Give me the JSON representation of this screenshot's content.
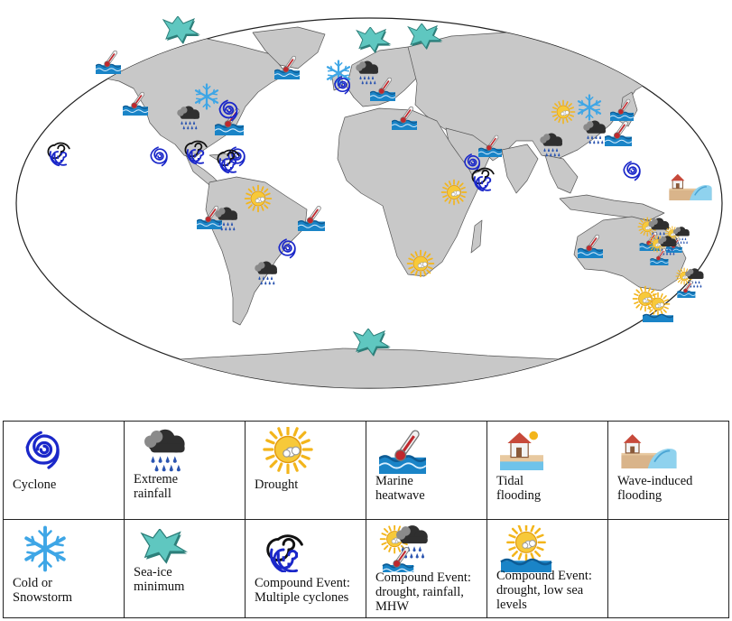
{
  "colors": {
    "land": "#c8c8c8",
    "land_stroke": "#555555",
    "ocean": "#ffffff",
    "cyclone": "#1a27c9",
    "snow": "#3ea6e6",
    "sea_ice": "#5fc7c0",
    "sun": "#f3b51b",
    "cloud": "#2f2f2f",
    "rain": "#2a54b0",
    "wave": "#1a84c7",
    "thermo": "#c0282d"
  },
  "legend": {
    "items": [
      {
        "key": "cyclone",
        "label": "Cyclone",
        "icon": "cyclone-icon"
      },
      {
        "key": "rainfall",
        "label": "Extreme rainfall",
        "icon": "rain-cloud-icon"
      },
      {
        "key": "drought",
        "label": "Drought",
        "icon": "sun-icon"
      },
      {
        "key": "mhw",
        "label": "Marine heatwave",
        "icon": "thermometer-wave-icon"
      },
      {
        "key": "tidal",
        "label": "Tidal flooding",
        "icon": "tidal-house-icon"
      },
      {
        "key": "wave",
        "label": "Wave-induced flooding",
        "icon": "wave-house-icon"
      },
      {
        "key": "cold",
        "label": "Cold or Snowstorm",
        "icon": "snowflake-icon"
      },
      {
        "key": "seaice",
        "label": "Sea-ice minimum",
        "icon": "sea-ice-icon"
      },
      {
        "key": "multi",
        "label": "Compound Event: Multiple cyclones",
        "icon": "multiple-cyclones-icon"
      },
      {
        "key": "c_drm",
        "label": "Compound Event: drought, rainfall, MHW",
        "icon": "compound-drought-rain-mhw-icon"
      },
      {
        "key": "c_dsl",
        "label": "Compound Event: drought, low sea levels",
        "icon": "compound-drought-low-sea-icon"
      }
    ]
  },
  "markers": [
    {
      "type": "seaice",
      "region": "Canadian Arctic"
    },
    {
      "type": "seaice",
      "region": "Barents Sea"
    },
    {
      "type": "seaice",
      "region": "Kara Sea"
    },
    {
      "type": "seaice",
      "region": "Antarctica"
    },
    {
      "type": "mhw",
      "region": "Gulf of Alaska"
    },
    {
      "type": "mhw",
      "region": "Greenland Sea"
    },
    {
      "type": "mhw",
      "region": "NE Pacific"
    },
    {
      "type": "mhw",
      "region": "North Atlantic"
    },
    {
      "type": "mhw",
      "region": "Mediterranean"
    },
    {
      "type": "mhw",
      "region": "Red Sea"
    },
    {
      "type": "mhw",
      "region": "NW Pacific"
    },
    {
      "type": "mhw",
      "region": "SW Atlantic"
    },
    {
      "type": "mhw",
      "region": "SE Pacific"
    },
    {
      "type": "mhw",
      "region": "Western Australia"
    },
    {
      "type": "cold",
      "region": "Northern Europe"
    },
    {
      "type": "cold",
      "region": "North America"
    },
    {
      "type": "cold",
      "region": "East Asia"
    },
    {
      "type": "rainfall",
      "region": "Western Europe"
    },
    {
      "type": "rainfall",
      "region": "North America"
    },
    {
      "type": "rainfall",
      "region": "South Asia"
    },
    {
      "type": "rainfall",
      "region": "East Asia"
    },
    {
      "type": "rainfall",
      "region": "South America"
    },
    {
      "type": "rainfall",
      "region": "Amazon"
    },
    {
      "type": "cyclone",
      "region": "NE Atlantic"
    },
    {
      "type": "cyclone",
      "region": "Atlantic coast"
    },
    {
      "type": "cyclone",
      "region": "Gulf of Mexico"
    },
    {
      "type": "cyclone",
      "region": "Caribbean"
    },
    {
      "type": "cyclone",
      "region": "Arabian Sea"
    },
    {
      "type": "cyclone",
      "region": "NW Pacific"
    },
    {
      "type": "cyclone",
      "region": "South Atlantic"
    },
    {
      "type": "multi",
      "region": "Central Pacific"
    },
    {
      "type": "multi",
      "region": "Gulf of Mexico"
    },
    {
      "type": "multi",
      "region": "Caribbean"
    },
    {
      "type": "multi",
      "region": "Indian Ocean"
    },
    {
      "type": "drought",
      "region": "Amazon"
    },
    {
      "type": "drought",
      "region": "East Africa"
    },
    {
      "type": "drought",
      "region": "Southern Africa"
    },
    {
      "type": "drought",
      "region": "China"
    },
    {
      "type": "drought",
      "region": "Southeast Australia"
    },
    {
      "type": "wave",
      "region": "Pacific Islands"
    },
    {
      "type": "c_drm",
      "region": "Northern Australia"
    },
    {
      "type": "c_drm",
      "region": "Eastern Australia"
    },
    {
      "type": "c_dsl",
      "region": "New Zealand"
    }
  ]
}
